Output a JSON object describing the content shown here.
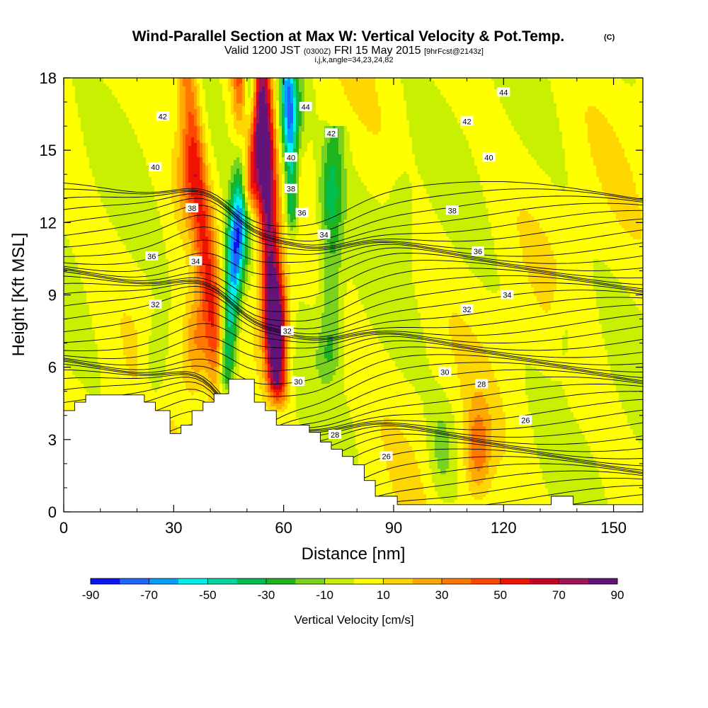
{
  "title": {
    "main": "Wind-Parallel Section at Max W: Vertical Velocity & Pot.Temp.",
    "main_tag": "(C)",
    "valid_prefix": "Valid 1200 JST",
    "valid_utc": "(0300Z)",
    "valid_date": "FRI 15 May 2015",
    "forecast_tag": "[9hrFcst@2143z]",
    "indices": "i,j,k,angle=34,23,24,82"
  },
  "chart_data": {
    "type": "heatmap",
    "xlabel": "Distance [nm]",
    "ylabel": "Height [Kft MSL]",
    "xlim": [
      0,
      158
    ],
    "ylim": [
      0,
      18
    ],
    "x_ticks": [
      0,
      30,
      60,
      90,
      120,
      150
    ],
    "y_ticks": [
      0,
      3,
      6,
      9,
      12,
      15,
      18
    ],
    "colorbar": {
      "label": "Vertical Velocity [cm/s]",
      "tick_labels": [
        "-90",
        "-70",
        "-50",
        "-30",
        "-10",
        "10",
        "30",
        "50",
        "70",
        "90"
      ],
      "tick_values": [
        -90,
        -70,
        -50,
        -30,
        -10,
        10,
        30,
        50,
        70,
        90
      ],
      "bins": [
        -90,
        -80,
        -70,
        -60,
        -50,
        -40,
        -30,
        -20,
        -10,
        0,
        10,
        20,
        30,
        40,
        50,
        60,
        70,
        80,
        90
      ],
      "colors": [
        "#0a14f0",
        "#1e64ff",
        "#00a0ff",
        "#00f0f0",
        "#00d7a0",
        "#00be50",
        "#1eb41e",
        "#78d21e",
        "#c8f000",
        "#ffff00",
        "#ffd700",
        "#ffaa00",
        "#ff7800",
        "#ff4600",
        "#f01400",
        "#c80028",
        "#a0145a",
        "#641478"
      ]
    },
    "velocity_features": [
      {
        "x": 47,
        "y": 11.0,
        "w": -60,
        "note": "downdraft core"
      },
      {
        "x": 58,
        "y": 8.0,
        "w": 90,
        "note": "updraft core"
      },
      {
        "x": 53,
        "y": 15.0,
        "w": 60
      },
      {
        "x": 34,
        "y": 14.0,
        "w": 40
      },
      {
        "x": 62,
        "y": 16.5,
        "w": -70
      },
      {
        "x": 72,
        "y": 13.0,
        "w": -30
      },
      {
        "x": 25,
        "y": 6.0,
        "w": -30
      },
      {
        "x": 36,
        "y": 7.0,
        "w": 50
      },
      {
        "x": 103,
        "y": 2.5,
        "w": -30
      },
      {
        "x": 113,
        "y": 2.5,
        "w": 60
      },
      {
        "x": 92,
        "y": 12.5,
        "w": -20
      },
      {
        "x": 137,
        "y": 7.5,
        "w": -20
      }
    ],
    "theta_contour_labels": [
      {
        "value": "44",
        "x": 120,
        "y": 17.4
      },
      {
        "value": "44",
        "x": 66,
        "y": 16.8
      },
      {
        "value": "42",
        "x": 27,
        "y": 16.4
      },
      {
        "value": "42",
        "x": 73,
        "y": 15.7
      },
      {
        "value": "42",
        "x": 110,
        "y": 16.2
      },
      {
        "value": "40",
        "x": 25,
        "y": 14.3
      },
      {
        "value": "40",
        "x": 62,
        "y": 14.7
      },
      {
        "value": "40",
        "x": 116,
        "y": 14.7
      },
      {
        "value": "38",
        "x": 35,
        "y": 12.6
      },
      {
        "value": "38",
        "x": 62,
        "y": 13.4
      },
      {
        "value": "38",
        "x": 106,
        "y": 12.5
      },
      {
        "value": "36",
        "x": 24,
        "y": 10.6
      },
      {
        "value": "36",
        "x": 65,
        "y": 12.4
      },
      {
        "value": "36",
        "x": 113,
        "y": 10.8
      },
      {
        "value": "34",
        "x": 36,
        "y": 10.4
      },
      {
        "value": "34",
        "x": 71,
        "y": 11.5
      },
      {
        "value": "34",
        "x": 121,
        "y": 9.0
      },
      {
        "value": "32",
        "x": 25,
        "y": 8.6
      },
      {
        "value": "32",
        "x": 61,
        "y": 7.5
      },
      {
        "value": "32",
        "x": 110,
        "y": 8.4
      },
      {
        "value": "30",
        "x": 64,
        "y": 5.4
      },
      {
        "value": "30",
        "x": 104,
        "y": 5.8
      },
      {
        "value": "28",
        "x": 74,
        "y": 3.2
      },
      {
        "value": "28",
        "x": 114,
        "y": 5.3
      },
      {
        "value": "26",
        "x": 88,
        "y": 2.3
      },
      {
        "value": "26",
        "x": 126,
        "y": 3.8
      }
    ],
    "terrain_top_kft": [
      [
        0,
        4.2
      ],
      [
        3,
        4.55
      ],
      [
        6,
        4.85
      ],
      [
        22,
        4.55
      ],
      [
        25,
        4.2
      ],
      [
        29,
        3.25
      ],
      [
        32,
        3.6
      ],
      [
        35,
        4.2
      ],
      [
        38,
        4.55
      ],
      [
        41,
        4.9
      ],
      [
        45,
        5.5
      ],
      [
        52,
        4.55
      ],
      [
        55,
        4.2
      ],
      [
        58,
        3.6
      ],
      [
        67,
        3.3
      ],
      [
        70,
        2.9
      ],
      [
        73,
        2.6
      ],
      [
        76,
        2.3
      ],
      [
        79,
        1.95
      ],
      [
        82,
        1.3
      ],
      [
        85,
        0.65
      ],
      [
        91,
        0.3
      ],
      [
        133,
        0.65
      ],
      [
        139,
        0.3
      ],
      [
        158,
        0.3
      ]
    ]
  }
}
